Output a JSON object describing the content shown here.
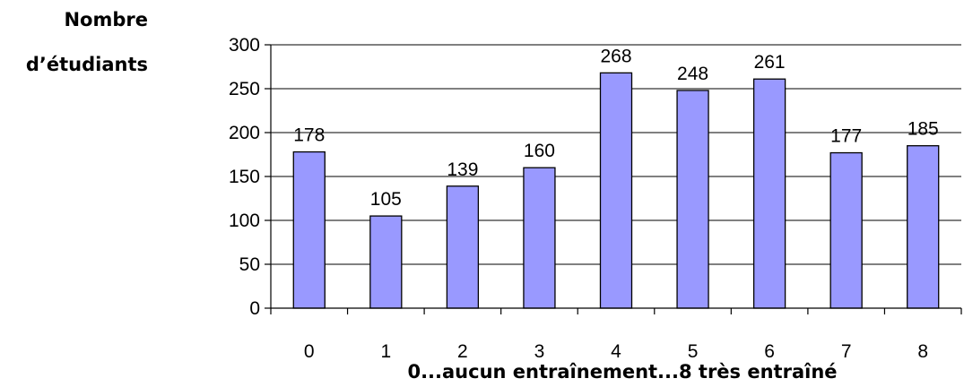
{
  "chart_data": {
    "type": "bar",
    "categories": [
      "0",
      "1",
      "2",
      "3",
      "4",
      "5",
      "6",
      "7",
      "8"
    ],
    "values": [
      178,
      105,
      139,
      160,
      268,
      248,
      261,
      177,
      185
    ],
    "data_labels": [
      "178",
      "105",
      "139",
      "160",
      "268",
      "248",
      "261",
      "177",
      "185"
    ],
    "ylabel_lines": [
      "Nombre",
      "d’étudiants"
    ],
    "xlabel": "0...aucun entraînement...8 très entraîné",
    "ylim": [
      0,
      300
    ],
    "yticks": [
      0,
      50,
      100,
      150,
      200,
      250,
      300
    ],
    "grid": true,
    "legend": "none",
    "colors": {
      "bar_fill": "#9999ff",
      "bar_stroke": "#000000",
      "grid": "#000000"
    }
  }
}
